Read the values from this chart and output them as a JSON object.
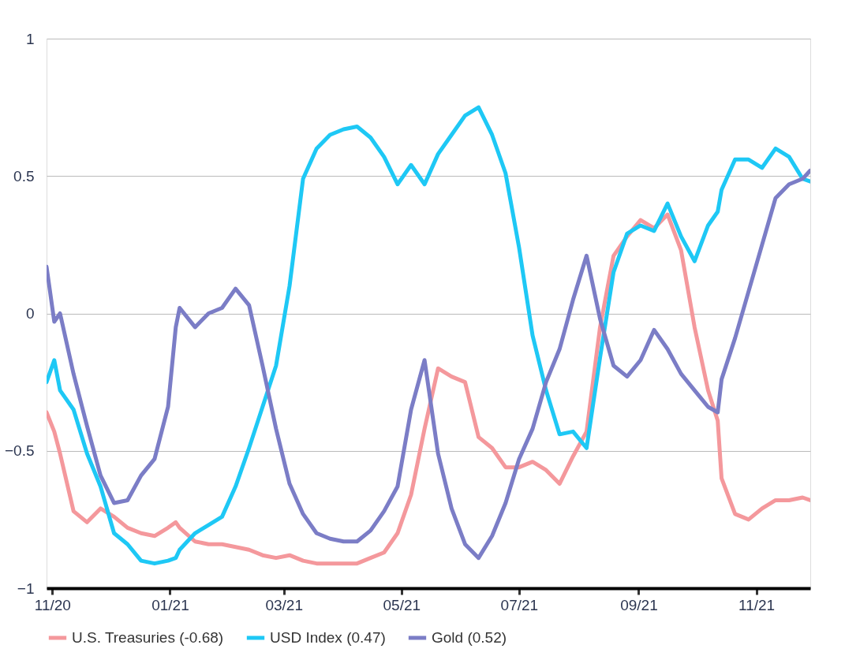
{
  "chart_data": {
    "type": "line",
    "x": [
      "2020-10-29",
      "2020-11-02",
      "2020-11-05",
      "2020-11-12",
      "2020-11-19",
      "2020-11-26",
      "2020-12-03",
      "2020-12-10",
      "2020-12-17",
      "2020-12-24",
      "2020-12-31",
      "2021-01-04",
      "2021-01-06",
      "2021-01-14",
      "2021-01-21",
      "2021-01-28",
      "2021-02-04",
      "2021-02-11",
      "2021-02-18",
      "2021-02-25",
      "2021-03-04",
      "2021-03-11",
      "2021-03-18",
      "2021-03-25",
      "2021-04-01",
      "2021-04-08",
      "2021-04-15",
      "2021-04-22",
      "2021-04-29",
      "2021-05-06",
      "2021-05-13",
      "2021-05-20",
      "2021-05-27",
      "2021-06-03",
      "2021-06-10",
      "2021-06-17",
      "2021-06-24",
      "2021-07-01",
      "2021-07-08",
      "2021-07-15",
      "2021-07-22",
      "2021-07-29",
      "2021-08-05",
      "2021-08-12",
      "2021-08-19",
      "2021-08-26",
      "2021-09-02",
      "2021-09-09",
      "2021-09-16",
      "2021-09-23",
      "2021-09-30",
      "2021-10-07",
      "2021-10-12",
      "2021-10-14",
      "2021-10-21",
      "2021-10-28",
      "2021-11-04",
      "2021-11-11",
      "2021-11-18",
      "2021-11-25",
      "2021-11-29"
    ],
    "series": [
      {
        "name": "U.S. Treasuries (-0.68)",
        "color": "#f4989c",
        "values": [
          -0.36,
          -0.43,
          -0.51,
          -0.72,
          -0.76,
          -0.71,
          -0.74,
          -0.78,
          -0.8,
          -0.81,
          -0.78,
          -0.76,
          -0.78,
          -0.83,
          -0.84,
          -0.84,
          -0.85,
          -0.86,
          -0.88,
          -0.89,
          -0.88,
          -0.9,
          -0.91,
          -0.91,
          -0.91,
          -0.91,
          -0.89,
          -0.87,
          -0.8,
          -0.66,
          -0.42,
          -0.2,
          -0.23,
          -0.25,
          -0.45,
          -0.49,
          -0.56,
          -0.56,
          -0.54,
          -0.57,
          -0.62,
          -0.52,
          -0.43,
          -0.05,
          0.21,
          0.28,
          0.34,
          0.31,
          0.36,
          0.23,
          -0.05,
          -0.28,
          -0.39,
          -0.6,
          -0.73,
          -0.75,
          -0.71,
          -0.68,
          -0.68,
          -0.67,
          -0.68
        ]
      },
      {
        "name": "USD Index (0.47)",
        "color": "#1ec8f5",
        "values": [
          -0.25,
          -0.17,
          -0.28,
          -0.35,
          -0.51,
          -0.63,
          -0.8,
          -0.84,
          -0.9,
          -0.91,
          -0.9,
          -0.89,
          -0.86,
          -0.8,
          -0.77,
          -0.74,
          -0.63,
          -0.49,
          -0.34,
          -0.19,
          0.1,
          0.49,
          0.6,
          0.65,
          0.67,
          0.68,
          0.64,
          0.57,
          0.47,
          0.54,
          0.47,
          0.58,
          0.65,
          0.72,
          0.75,
          0.65,
          0.51,
          0.24,
          -0.08,
          -0.28,
          -0.44,
          -0.43,
          -0.49,
          -0.16,
          0.15,
          0.29,
          0.32,
          0.3,
          0.4,
          0.28,
          0.19,
          0.32,
          0.37,
          0.45,
          0.56,
          0.56,
          0.53,
          0.6,
          0.57,
          0.49,
          0.48
        ]
      },
      {
        "name": "Gold (0.52)",
        "color": "#7b7dc6",
        "values": [
          0.17,
          -0.03,
          0.0,
          -0.22,
          -0.41,
          -0.59,
          -0.69,
          -0.68,
          -0.59,
          -0.53,
          -0.34,
          -0.05,
          0.02,
          -0.05,
          0.0,
          0.02,
          0.09,
          0.03,
          -0.19,
          -0.42,
          -0.62,
          -0.73,
          -0.8,
          -0.82,
          -0.83,
          -0.83,
          -0.79,
          -0.72,
          -0.63,
          -0.35,
          -0.17,
          -0.51,
          -0.71,
          -0.84,
          -0.89,
          -0.81,
          -0.69,
          -0.53,
          -0.42,
          -0.25,
          -0.13,
          0.05,
          0.21,
          -0.02,
          -0.19,
          -0.23,
          -0.17,
          -0.06,
          -0.13,
          -0.22,
          -0.28,
          -0.34,
          -0.36,
          -0.24,
          -0.09,
          0.08,
          0.25,
          0.42,
          0.47,
          0.49,
          0.52
        ]
      }
    ],
    "xlim": [
      "2020-10-29",
      "2021-11-29"
    ],
    "xticks": [
      {
        "value": "2020-11-01",
        "label": "11/20"
      },
      {
        "value": "2021-01-01",
        "label": "01/21"
      },
      {
        "value": "2021-03-01",
        "label": "03/21"
      },
      {
        "value": "2021-05-01",
        "label": "05/21"
      },
      {
        "value": "2021-07-01",
        "label": "07/21"
      },
      {
        "value": "2021-09-01",
        "label": "09/21"
      },
      {
        "value": "2021-11-01",
        "label": "11/21"
      }
    ],
    "ylim": [
      -1,
      1
    ],
    "yticks": [
      {
        "value": -1,
        "label": "−1"
      },
      {
        "value": -0.5,
        "label": "−0.5"
      },
      0,
      0.5,
      1
    ],
    "grid": "y",
    "legend": "bottom",
    "marker": "none",
    "line_style": "solid"
  }
}
